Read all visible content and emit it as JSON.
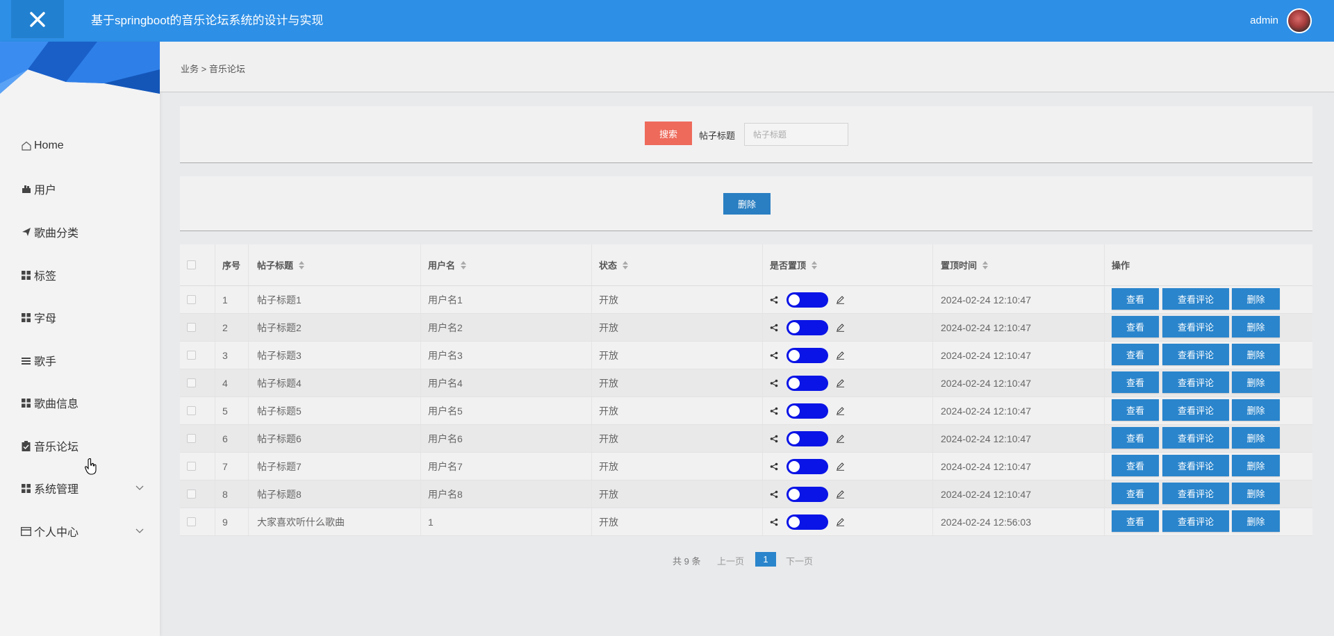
{
  "app": {
    "title": "基于springboot的音乐论坛系统的设计与实现",
    "user_name": "admin",
    "header_color": "#2d8fe6"
  },
  "sidebar": {
    "items": [
      {
        "label": "Home",
        "icon": "home-icon"
      },
      {
        "label": "用户",
        "icon": "users-icon"
      },
      {
        "label": "歌曲分类",
        "icon": "send-icon"
      },
      {
        "label": "标签",
        "icon": "grid-icon"
      },
      {
        "label": "字母",
        "icon": "grid-icon"
      },
      {
        "label": "歌手",
        "icon": "list-icon"
      },
      {
        "label": "歌曲信息",
        "icon": "grid-icon"
      },
      {
        "label": "音乐论坛",
        "icon": "clipboard-icon"
      },
      {
        "label": "系统管理",
        "icon": "grid-icon",
        "expandable": true
      },
      {
        "label": "个人中心",
        "icon": "card-icon",
        "expandable": true
      }
    ]
  },
  "breadcrumb": {
    "path": "业务 > 音乐论坛"
  },
  "search": {
    "button_label": "搜索",
    "field_label": "帖子标题",
    "placeholder": "帖子标题",
    "value": ""
  },
  "actions": {
    "delete_label": "删除"
  },
  "table": {
    "headers": {
      "index": "序号",
      "title": "帖子标题",
      "username": "用户名",
      "status": "状态",
      "pinned": "是否置顶",
      "pin_time": "置顶时间",
      "operations": "操作"
    },
    "row_buttons": {
      "view": "查看",
      "view_comments": "查看评论",
      "delete": "删除"
    },
    "rows": [
      {
        "index": "1",
        "title": "帖子标题1",
        "username": "用户名1",
        "status": "开放",
        "pinned": true,
        "pin_time": "2024-02-24 12:10:47"
      },
      {
        "index": "2",
        "title": "帖子标题2",
        "username": "用户名2",
        "status": "开放",
        "pinned": true,
        "pin_time": "2024-02-24 12:10:47"
      },
      {
        "index": "3",
        "title": "帖子标题3",
        "username": "用户名3",
        "status": "开放",
        "pinned": true,
        "pin_time": "2024-02-24 12:10:47"
      },
      {
        "index": "4",
        "title": "帖子标题4",
        "username": "用户名4",
        "status": "开放",
        "pinned": true,
        "pin_time": "2024-02-24 12:10:47"
      },
      {
        "index": "5",
        "title": "帖子标题5",
        "username": "用户名5",
        "status": "开放",
        "pinned": true,
        "pin_time": "2024-02-24 12:10:47"
      },
      {
        "index": "6",
        "title": "帖子标题6",
        "username": "用户名6",
        "status": "开放",
        "pinned": true,
        "pin_time": "2024-02-24 12:10:47"
      },
      {
        "index": "7",
        "title": "帖子标题7",
        "username": "用户名7",
        "status": "开放",
        "pinned": true,
        "pin_time": "2024-02-24 12:10:47"
      },
      {
        "index": "8",
        "title": "帖子标题8",
        "username": "用户名8",
        "status": "开放",
        "pinned": true,
        "pin_time": "2024-02-24 12:10:47"
      },
      {
        "index": "9",
        "title": "大家喜欢听什么歌曲",
        "username": "1",
        "status": "开放",
        "pinned": true,
        "pin_time": "2024-02-24 12:56:03"
      }
    ]
  },
  "pagination": {
    "total_text": "共 9 条",
    "prev_label": "上一页",
    "current_page": "1",
    "next_label": "下一页"
  }
}
